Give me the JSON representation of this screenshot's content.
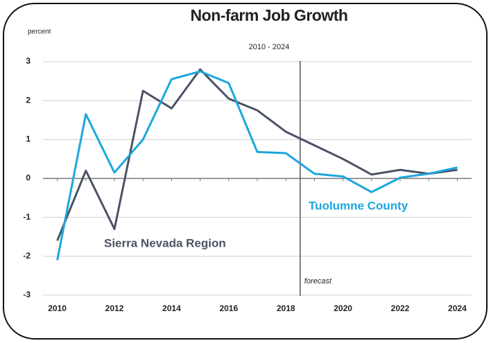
{
  "chart_data": {
    "type": "line",
    "title": "Non-farm Job Growth",
    "subtitle": "2010 - 2024",
    "y_label": "percent",
    "x": [
      2010,
      2011,
      2012,
      2013,
      2014,
      2015,
      2016,
      2017,
      2018,
      2019,
      2020,
      2021,
      2022,
      2023,
      2024
    ],
    "series": [
      {
        "name": "Sierra Nevada Region",
        "color": "#4a5263",
        "values": [
          -1.6,
          0.2,
          -1.3,
          2.25,
          1.8,
          2.8,
          2.05,
          1.75,
          1.2,
          0.85,
          0.5,
          0.1,
          0.22,
          0.12,
          0.22
        ]
      },
      {
        "name": "Tuolumne County",
        "color": "#1ba6de",
        "values": [
          -2.1,
          1.65,
          0.15,
          1.0,
          2.55,
          2.75,
          2.45,
          0.68,
          0.65,
          0.12,
          0.05,
          -0.35,
          0.02,
          0.12,
          0.28
        ]
      }
    ],
    "annotation": {
      "text": "forecast",
      "x": 2018.5
    },
    "xlim": [
      2009.5,
      2024.5
    ],
    "xticks": [
      2010,
      2012,
      2014,
      2016,
      2018,
      2020,
      2022,
      2024
    ],
    "ylim": [
      -3,
      3
    ],
    "yticks": [
      -3,
      -2,
      -1,
      0,
      1,
      2,
      3
    ],
    "grid": true
  }
}
